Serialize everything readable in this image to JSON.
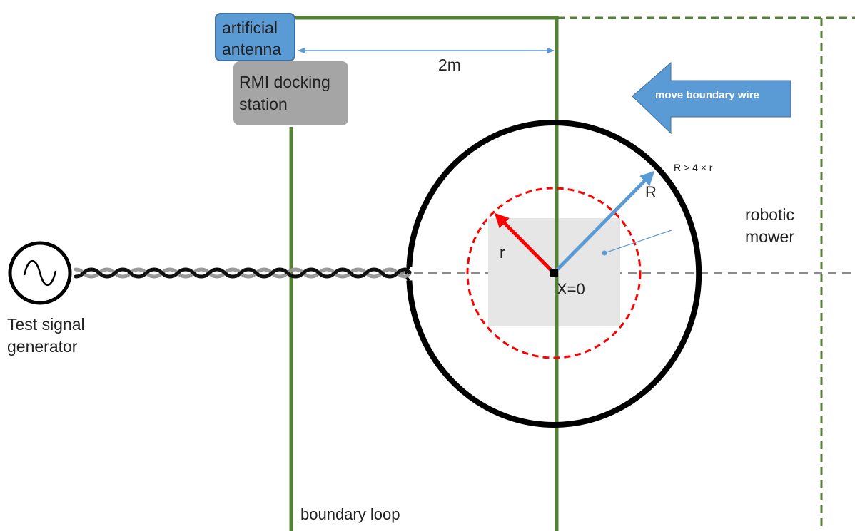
{
  "labels": {
    "artificial_antenna": [
      "artificial",
      "antenna"
    ],
    "docking_station": [
      "RMI docking",
      "station"
    ],
    "distance": "2m",
    "move_wire": "move boundary wire",
    "radius_condition": "R > 4 × r",
    "big_radius": "R",
    "small_radius": "r",
    "mower": [
      "robotic",
      "mower"
    ],
    "origin": "X=0",
    "generator": [
      "Test signal",
      "generator"
    ],
    "boundary_loop": "boundary loop"
  },
  "icons": {
    "generator": "sine-wave-icon",
    "move_arrow": "left-arrow-icon"
  },
  "colors": {
    "boundary_green": "#548235",
    "accent_blue": "#5b9bd5",
    "radius_red": "#ff0000",
    "circle_black": "#000000",
    "mower_gray": "#e6e6e6",
    "docking_gray": "#a5a5a5",
    "axis_gray": "#8c8c8c"
  }
}
